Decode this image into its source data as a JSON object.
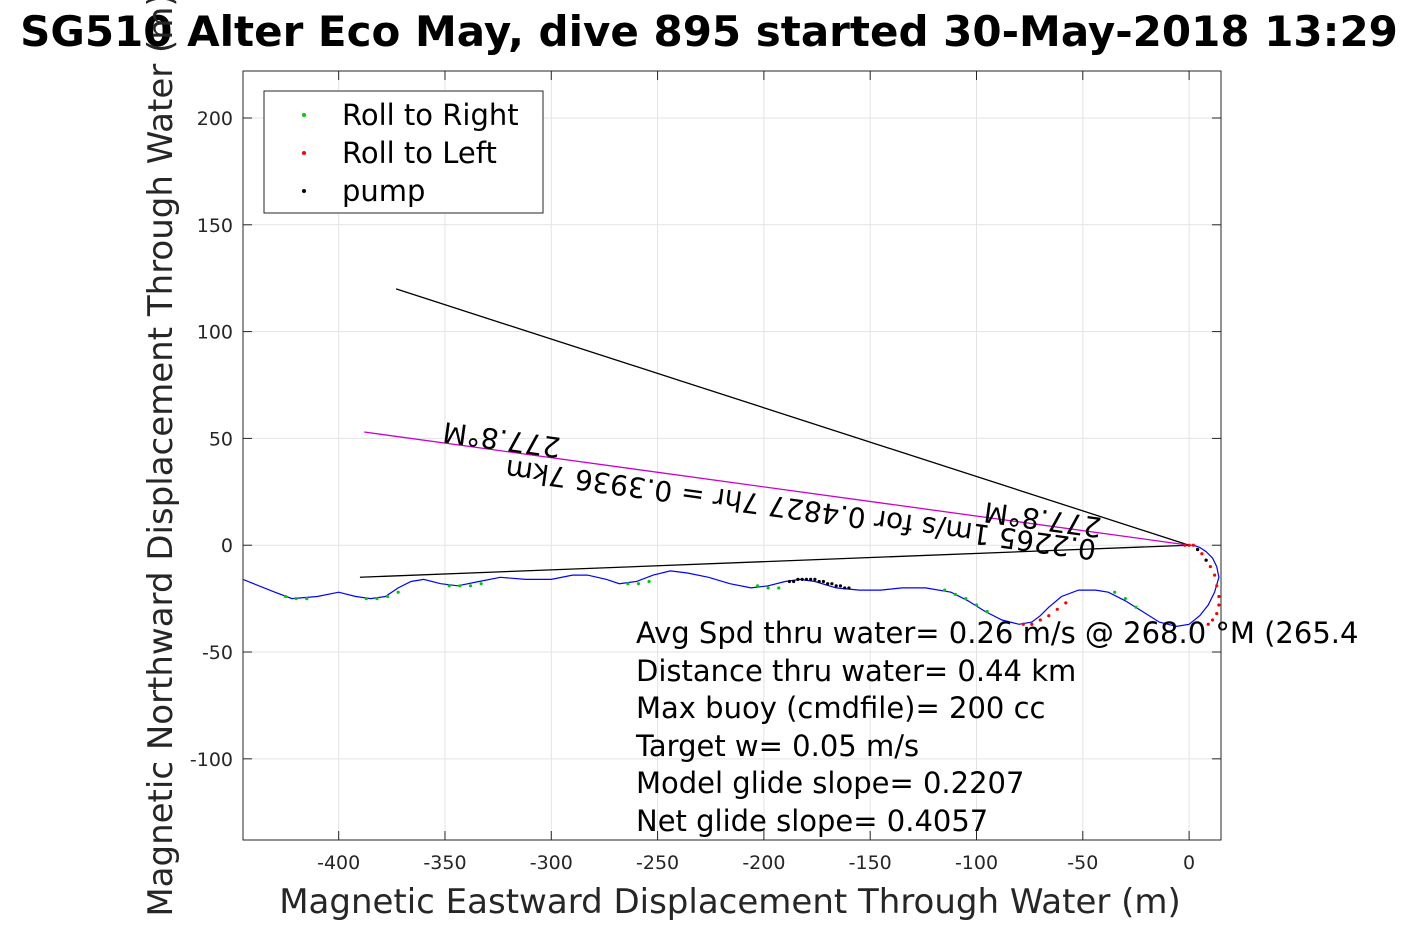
{
  "chart_data": {
    "type": "scatter",
    "title": "SG510 Alter Eco May, dive 895 started 30-May-2018 13:29",
    "xlabel": "Magnetic Eastward Displacement Through Water (m)",
    "ylabel": "Magnetic Northward Displacement Through Water (m)",
    "xlim": [
      -445,
      15
    ],
    "ylim": [
      -138,
      222
    ],
    "xticks": [
      -400,
      -350,
      -300,
      -250,
      -200,
      -150,
      -100,
      -50,
      0
    ],
    "yticks": [
      200,
      150,
      100,
      50,
      0,
      -50,
      -100
    ],
    "grid": true,
    "legend_position": "top-left",
    "legend": [
      {
        "name": "Roll to Right",
        "color": "#00cc00"
      },
      {
        "name": "Roll to Left",
        "color": "#ff0000"
      },
      {
        "name": "pump",
        "color": "#000000"
      }
    ],
    "track": {
      "color": "#0000ff",
      "x": [
        -445,
        -440,
        -430,
        -422,
        -410,
        -400,
        -392,
        -385,
        -378,
        -372,
        -366,
        -360,
        -352,
        -344,
        -334,
        -324,
        -312,
        -300,
        -290,
        -283,
        -274,
        -268,
        -260,
        -252,
        -244,
        -236,
        -226,
        -216,
        -206,
        -198,
        -190,
        -183,
        -176,
        -166,
        -155,
        -145,
        -135,
        -124,
        -112,
        -104,
        -96,
        -88,
        -80,
        -74,
        -70,
        -66,
        -60,
        -52,
        -44,
        -38,
        -30,
        -22,
        -14,
        -6,
        0,
        5,
        9,
        12,
        14,
        13,
        11,
        8,
        5,
        2,
        0,
        -2
      ],
      "y": [
        -16,
        -18,
        -22,
        -25,
        -24,
        -22,
        -24,
        -25,
        -24,
        -20,
        -17,
        -16,
        -18,
        -19,
        -17,
        -15,
        -16,
        -16,
        -14,
        -14,
        -16,
        -18,
        -17,
        -14,
        -12,
        -13,
        -15,
        -18,
        -20,
        -19,
        -17,
        -16,
        -17,
        -20,
        -21,
        -21,
        -20,
        -20,
        -22,
        -26,
        -31,
        -35,
        -37,
        -36,
        -33,
        -29,
        -24,
        -21,
        -21,
        -22,
        -26,
        -31,
        -36,
        -38,
        -37,
        -33,
        -28,
        -22,
        -15,
        -10,
        -6,
        -3,
        -1,
        0,
        0,
        0
      ]
    },
    "roll_right_points": {
      "x": [
        -425,
        -420,
        -415,
        -387,
        -382,
        -377,
        -372,
        -348,
        -343,
        -338,
        -333,
        -264,
        -259,
        -254,
        -203,
        -198,
        -193,
        -115,
        -110,
        -105,
        -100,
        -95,
        -35,
        -30,
        -25
      ],
      "y": [
        -24,
        -25,
        -25,
        -25,
        -25,
        -24,
        -22,
        -19,
        -19,
        -19,
        -18,
        -18,
        -18,
        -17,
        -19,
        -20,
        -20,
        -21,
        -23,
        -25,
        -28,
        -31,
        -22,
        -25,
        -29
      ]
    },
    "roll_left_points": {
      "x": [
        -78,
        -74,
        -70,
        -66,
        -62,
        -58,
        -2,
        0,
        2,
        4,
        6,
        8,
        10,
        12,
        13,
        14,
        14,
        13,
        11,
        9
      ],
      "y": [
        -37,
        -37,
        -35,
        -33,
        -30,
        -27,
        0,
        0,
        0,
        -2,
        -4,
        -7,
        -10,
        -14,
        -19,
        -24,
        -28,
        -32,
        -35,
        -37
      ]
    },
    "pump_points": {
      "x": [
        -188,
        -186,
        -184,
        -182,
        -180,
        -178,
        -176,
        -174,
        -172,
        -170,
        -168,
        -166,
        -164,
        -162,
        -160,
        4,
        8
      ],
      "y": [
        -17,
        -17,
        -16,
        -16,
        -16,
        -16,
        -16,
        -17,
        -17,
        -18,
        -18,
        -19,
        -19,
        -20,
        -20,
        -2,
        -7
      ]
    },
    "lines": [
      {
        "name": "black-upper",
        "color": "#000000",
        "x": [
          0,
          -373
        ],
        "y": [
          0,
          120
        ]
      },
      {
        "name": "magenta-heading",
        "color": "#cc00cc",
        "x": [
          0,
          -388
        ],
        "y": [
          0,
          53
        ]
      },
      {
        "name": "black-lower",
        "color": "#000000",
        "x": [
          0,
          -390
        ],
        "y": [
          0,
          -15
        ]
      }
    ],
    "annotations": {
      "heading_far": "277.8°M",
      "speed_label": "0.2265 1m/s for 0.4827 7hr = 0.3936 7km",
      "heading_near": "277.8°M",
      "stats": [
        "Avg Spd thru water=  0.26 m/s @ 268.0 °M (265.4",
        "Distance thru water=  0.44 km",
        "Max buoy (cmdfile)= 200 cc",
        "Target w= 0.05 m/s",
        "Model glide slope= 0.2207",
        "Net glide slope= 0.4057"
      ]
    }
  }
}
